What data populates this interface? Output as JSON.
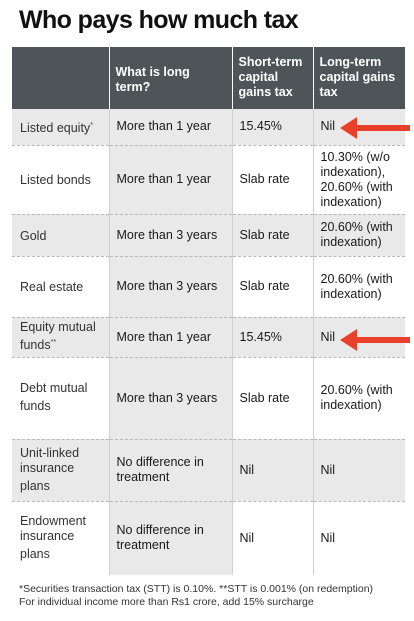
{
  "title": "Who pays how much tax",
  "table": {
    "headers": [
      "",
      "What is long term?",
      "Short-term capital gains tax",
      "Long-term capital gains tax"
    ],
    "rows": [
      {
        "asset": "Listed equity",
        "mark": "*",
        "long_term": "More than 1 year",
        "stcg": "15.45%",
        "ltcg": "Nil"
      },
      {
        "asset": "Listed bonds",
        "mark": "",
        "long_term": "More than 1 year",
        "stcg": "Slab rate",
        "ltcg": "10.30% (w/o indexation), 20.60% (with indexation)"
      },
      {
        "asset": "Gold",
        "mark": "",
        "long_term": "More than 3 years",
        "stcg": "Slab rate",
        "ltcg": "20.60% (with indexation)"
      },
      {
        "asset": "Real estate",
        "mark": "",
        "long_term": "More than 3 years",
        "stcg": "Slab rate",
        "ltcg": "20.60% (with indexation)"
      },
      {
        "asset": "Equity mutual funds",
        "mark": "**",
        "long_term": "More than 1 year",
        "stcg": "15.45%",
        "ltcg": "Nil"
      },
      {
        "asset": "Debt mutual funds",
        "mark": "",
        "long_term": "More than 3 years",
        "stcg": "Slab rate",
        "ltcg": "20.60% (with indexation)"
      },
      {
        "asset": "Unit-linked insurance plans",
        "mark": "",
        "long_term": "No difference in treatment",
        "stcg": "Nil",
        "ltcg": "Nil"
      },
      {
        "asset": "Endowment insurance plans",
        "mark": "",
        "long_term": "No difference in treatment",
        "stcg": "Nil",
        "ltcg": "Nil"
      }
    ]
  },
  "footnotes": [
    "*Securities transaction tax (STT) is 0.10%. **STT is 0.001% (on redemption)",
    "For individual income more than Rs1 crore, add 15% surcharge"
  ],
  "colors": {
    "header_bg": "#4d5559",
    "shade": "#e9e9e9",
    "arrow": "#e8402a"
  }
}
